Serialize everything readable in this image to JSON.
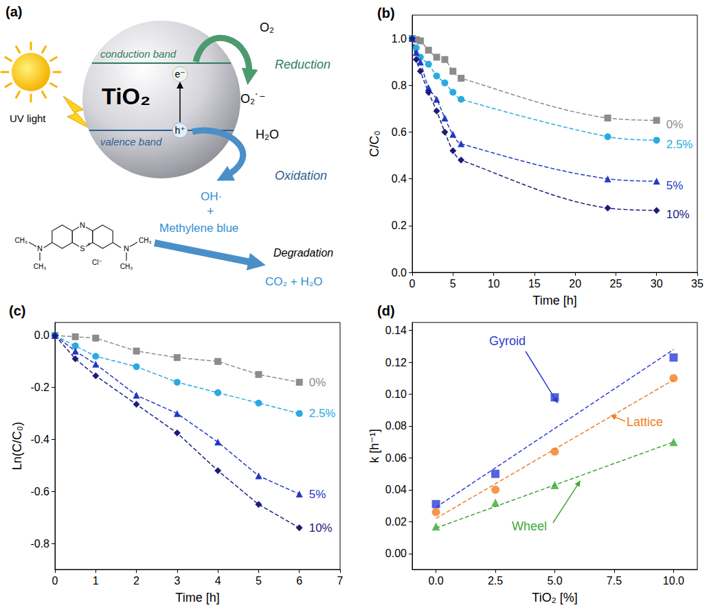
{
  "diagram": {
    "panel_label": "(a)",
    "light": "UV light",
    "particle": "TiO₂",
    "conduction_band": "conduction band",
    "valence_band": "valence band",
    "electron": "e⁻",
    "hole": "h⁺",
    "reduction": {
      "reactant": "O₂",
      "label": "Reduction",
      "product": "O₂˙⁻"
    },
    "oxidation": {
      "reactant": "H₂O",
      "label": "Oxidation",
      "product": "OH·"
    },
    "plus": "+",
    "dye": "Methylene blue",
    "degradation": {
      "label": "Degradation",
      "products": "CO₂ + H₂O"
    },
    "molecule": {
      "ring_n": "N",
      "sulfur": "S",
      "charge": "+",
      "counter_ion": "Cl⁻",
      "amine": "N",
      "methyl": "CH₃"
    }
  },
  "chart_data": [
    {
      "panel_label": "(b)",
      "type": "line",
      "line_style": "dashed",
      "grid": false,
      "x_label": "Time [h]",
      "y_label": "C/C₀",
      "xlim": [
        0,
        35
      ],
      "xticks": [
        0,
        5,
        10,
        15,
        20,
        25,
        30,
        35
      ],
      "ylim": [
        0,
        1.1
      ],
      "yticks": [
        {
          "value": 0,
          "label": "0.0"
        },
        0.2,
        0.4,
        0.6,
        0.8,
        {
          "value": 1,
          "label": "1.0"
        }
      ],
      "x": [
        0,
        0.5,
        1,
        2,
        3,
        4,
        5,
        6,
        24,
        30
      ],
      "series": [
        {
          "name": "0%",
          "color": "#8c8c8c",
          "marker": "square",
          "values": [
            1.0,
            0.995,
            0.99,
            0.95,
            0.92,
            0.91,
            0.86,
            0.83,
            0.66,
            0.65
          ]
        },
        {
          "name": "2.5%",
          "color": "#29aae1",
          "marker": "circle",
          "values": [
            1.0,
            0.96,
            0.92,
            0.89,
            0.84,
            0.81,
            0.77,
            0.74,
            0.58,
            0.565
          ]
        },
        {
          "name": "5%",
          "color": "#2338c4",
          "marker": "triangle",
          "values": [
            1.0,
            0.94,
            0.9,
            0.79,
            0.74,
            0.66,
            0.59,
            0.55,
            0.4,
            0.39
          ]
        },
        {
          "name": "10%",
          "color": "#1c1c7a",
          "marker": "diamond",
          "values": [
            1.0,
            0.91,
            0.86,
            0.77,
            0.69,
            0.6,
            0.52,
            0.48,
            0.275,
            0.265
          ]
        }
      ]
    },
    {
      "panel_label": "(c)",
      "type": "line",
      "line_style": "dashed",
      "grid": false,
      "x_label": "Time [h]",
      "y_label": "Ln(C/C₀)",
      "xlim": [
        0,
        7
      ],
      "xticks": [
        0,
        1,
        2,
        3,
        4,
        5,
        6,
        7
      ],
      "ylim": [
        -0.9,
        0.05
      ],
      "yticks": [
        -0.8,
        -0.6,
        -0.4,
        -0.2,
        {
          "value": 0,
          "label": "0.0"
        }
      ],
      "x": [
        0,
        0.5,
        1,
        2,
        3,
        4,
        5,
        6
      ],
      "series": [
        {
          "name": "0%",
          "color": "#8c8c8c",
          "marker": "square",
          "values": [
            0,
            -0.005,
            -0.01,
            -0.06,
            -0.085,
            -0.1,
            -0.15,
            -0.18
          ]
        },
        {
          "name": "2.5%",
          "color": "#29aae1",
          "marker": "circle",
          "values": [
            0,
            -0.04,
            -0.08,
            -0.12,
            -0.18,
            -0.22,
            -0.26,
            -0.3
          ]
        },
        {
          "name": "5%",
          "color": "#2338c4",
          "marker": "triangle",
          "values": [
            0,
            -0.06,
            -0.11,
            -0.23,
            -0.3,
            -0.41,
            -0.54,
            -0.61
          ]
        },
        {
          "name": "10%",
          "color": "#1c1c7a",
          "marker": "diamond",
          "values": [
            0,
            -0.09,
            -0.155,
            -0.265,
            -0.375,
            -0.52,
            -0.65,
            -0.74
          ]
        }
      ]
    },
    {
      "panel_label": "(d)",
      "type": "scatter",
      "line_style": "dashed",
      "grid": false,
      "x_label": "TiO₂ [%]",
      "y_label": "k [h⁻¹]",
      "xlim": [
        -1,
        11
      ],
      "xticks": [
        {
          "value": 0,
          "label": "0.0"
        },
        2.5,
        {
          "value": 5,
          "label": "5.0"
        },
        7.5,
        {
          "value": 10,
          "label": "10.0"
        }
      ],
      "ylim": [
        -0.01,
        0.145
      ],
      "yticks": [
        {
          "value": 0,
          "label": "0.00"
        },
        {
          "value": 0.02,
          "label": "0.02"
        },
        {
          "value": 0.04,
          "label": "0.04"
        },
        {
          "value": 0.06,
          "label": "0.06"
        },
        {
          "value": 0.08,
          "label": "0.08"
        },
        {
          "value": 0.1,
          "label": "0.10"
        },
        {
          "value": 0.12,
          "label": "0.12"
        },
        {
          "value": 0.14,
          "label": "0.14"
        }
      ],
      "x": [
        0,
        2.5,
        5,
        10
      ],
      "fit_x": [
        0,
        10
      ],
      "series": [
        {
          "name": "Gyroid",
          "color": "#2a3cd6",
          "marker": "square",
          "values": [
            0.031,
            0.05,
            0.098,
            0.123
          ],
          "fit_values": [
            0.029,
            0.128
          ]
        },
        {
          "name": "Lattice",
          "color": "#f47c20",
          "marker": "circle",
          "values": [
            0.026,
            0.04,
            0.064,
            0.11
          ],
          "fit_values": [
            0.022,
            0.109
          ]
        },
        {
          "name": "Wheel",
          "color": "#3aaa35",
          "marker": "triangle",
          "values": [
            0.017,
            0.032,
            0.043,
            0.07
          ],
          "fit_values": [
            0.016,
            0.07
          ]
        }
      ]
    }
  ]
}
